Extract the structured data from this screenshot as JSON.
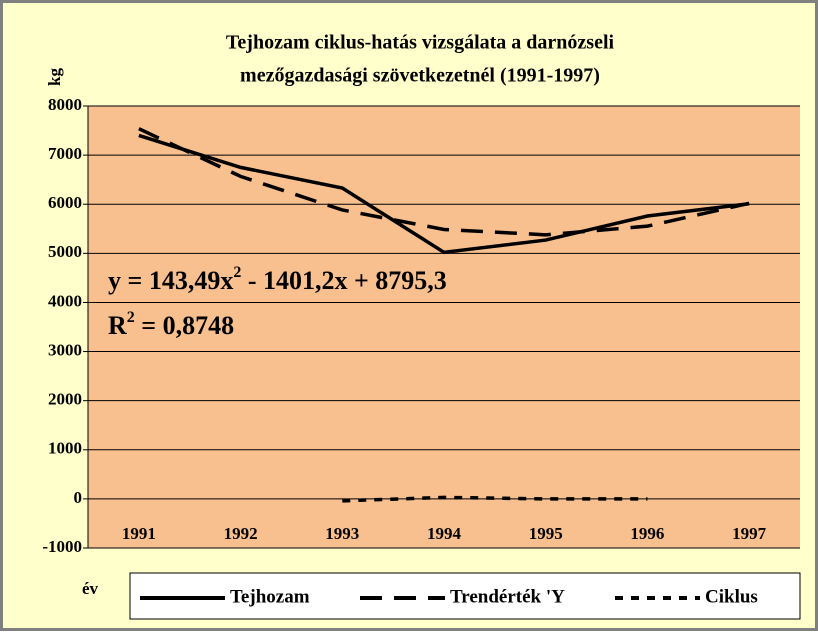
{
  "chart_data": {
    "type": "line",
    "title": [
      "Tejhozam ciklus-hatás vizsgálata a darnózseli",
      "mezőgazdasági szövetkezetnél (1991-1997)"
    ],
    "y_label": "kg",
    "x_label": "év",
    "categories": [
      "1991",
      "1992",
      "1993",
      "1994",
      "1995",
      "1996",
      "1997"
    ],
    "series": [
      {
        "name": "Tejhozam",
        "color": "#000000",
        "style": "solid",
        "values": [
          7400,
          6750,
          6330,
          5020,
          5270,
          5760,
          6010
        ]
      },
      {
        "name": "Trendérték 'Y",
        "color": "#000000",
        "style": "dashed",
        "values": [
          7538,
          6567,
          5883,
          5486,
          5377,
          5554,
          6018
        ]
      },
      {
        "name": "Ciklus",
        "color": "#000000",
        "style": "dotted",
        "values": [
          null,
          null,
          -40,
          30,
          0,
          0,
          null
        ]
      }
    ],
    "equation": {
      "text": "y = 143,49x",
      "sup": "2",
      "rest": " - 1401,2x + 8795,3"
    },
    "r_squared": {
      "text": "R",
      "sup": "2",
      "rest": " = 0,8748"
    },
    "ylim": [
      -1000,
      8000
    ],
    "yticks": [
      -1000,
      0,
      1000,
      2000,
      3000,
      4000,
      5000,
      6000,
      7000,
      8000
    ],
    "grid": true,
    "legend": "bottom"
  }
}
